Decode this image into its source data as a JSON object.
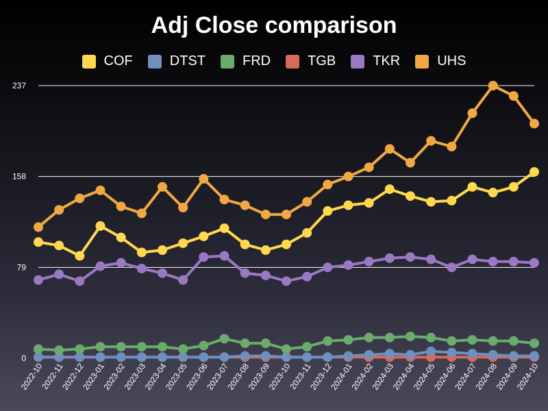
{
  "chart_data": {
    "type": "line",
    "title": "Adj Close comparison",
    "xlabel": "",
    "ylabel": "",
    "ylim": [
      0,
      237
    ],
    "yticks": [
      0,
      79,
      158,
      237
    ],
    "grid": true,
    "legend_position": "top",
    "categories": [
      "2022-10",
      "2022-11",
      "2022-12",
      "2023-01",
      "2023-02",
      "2023-03",
      "2023-04",
      "2023-05",
      "2023-06",
      "2023-07",
      "2023-08",
      "2023-09",
      "2023-10",
      "2023-11",
      "2023-12",
      "2024-01",
      "2024-02",
      "2024-03",
      "2024-04",
      "2024-05",
      "2024-06",
      "2024-07",
      "2024-08",
      "2024-09",
      "2024-10"
    ],
    "series": [
      {
        "name": "COF",
        "color": "#ffd84d",
        "values": [
          101,
          98,
          89,
          115,
          105,
          92,
          94,
          100,
          106,
          113,
          99,
          94,
          99,
          109,
          128,
          133,
          135,
          147,
          141,
          136,
          137,
          149,
          144,
          149,
          162
        ]
      },
      {
        "name": "DTST",
        "color": "#6f8fbf",
        "values": [
          1,
          1,
          1,
          1,
          1,
          1,
          1,
          1,
          1,
          1,
          2,
          2,
          1,
          1,
          1,
          2,
          3,
          4,
          3,
          6,
          5,
          4,
          3,
          2,
          2
        ]
      },
      {
        "name": "FRD",
        "color": "#6bab6b",
        "values": [
          8,
          7,
          8,
          10,
          10,
          10,
          10,
          8,
          11,
          17,
          13,
          13,
          8,
          10,
          15,
          16,
          18,
          18,
          19,
          18,
          15,
          16,
          15,
          15,
          13
        ]
      },
      {
        "name": "TGB",
        "color": "#d9695a",
        "values": [
          1,
          1,
          1,
          1,
          1,
          1,
          1,
          1,
          1,
          1,
          1,
          1,
          1,
          1,
          1,
          1,
          1,
          1,
          1,
          1,
          1,
          1,
          1,
          1,
          1
        ]
      },
      {
        "name": "TKR",
        "color": "#9b78c2",
        "values": [
          68,
          73,
          67,
          80,
          83,
          78,
          74,
          68,
          88,
          89,
          74,
          72,
          67,
          71,
          79,
          81,
          84,
          87,
          88,
          86,
          79,
          86,
          84,
          84,
          83
        ]
      },
      {
        "name": "UHS",
        "color": "#f0a842",
        "values": [
          114,
          129,
          139,
          146,
          132,
          126,
          149,
          131,
          156,
          138,
          133,
          125,
          125,
          136,
          151,
          158,
          166,
          182,
          170,
          189,
          184,
          213,
          237,
          228,
          204
        ]
      }
    ]
  }
}
